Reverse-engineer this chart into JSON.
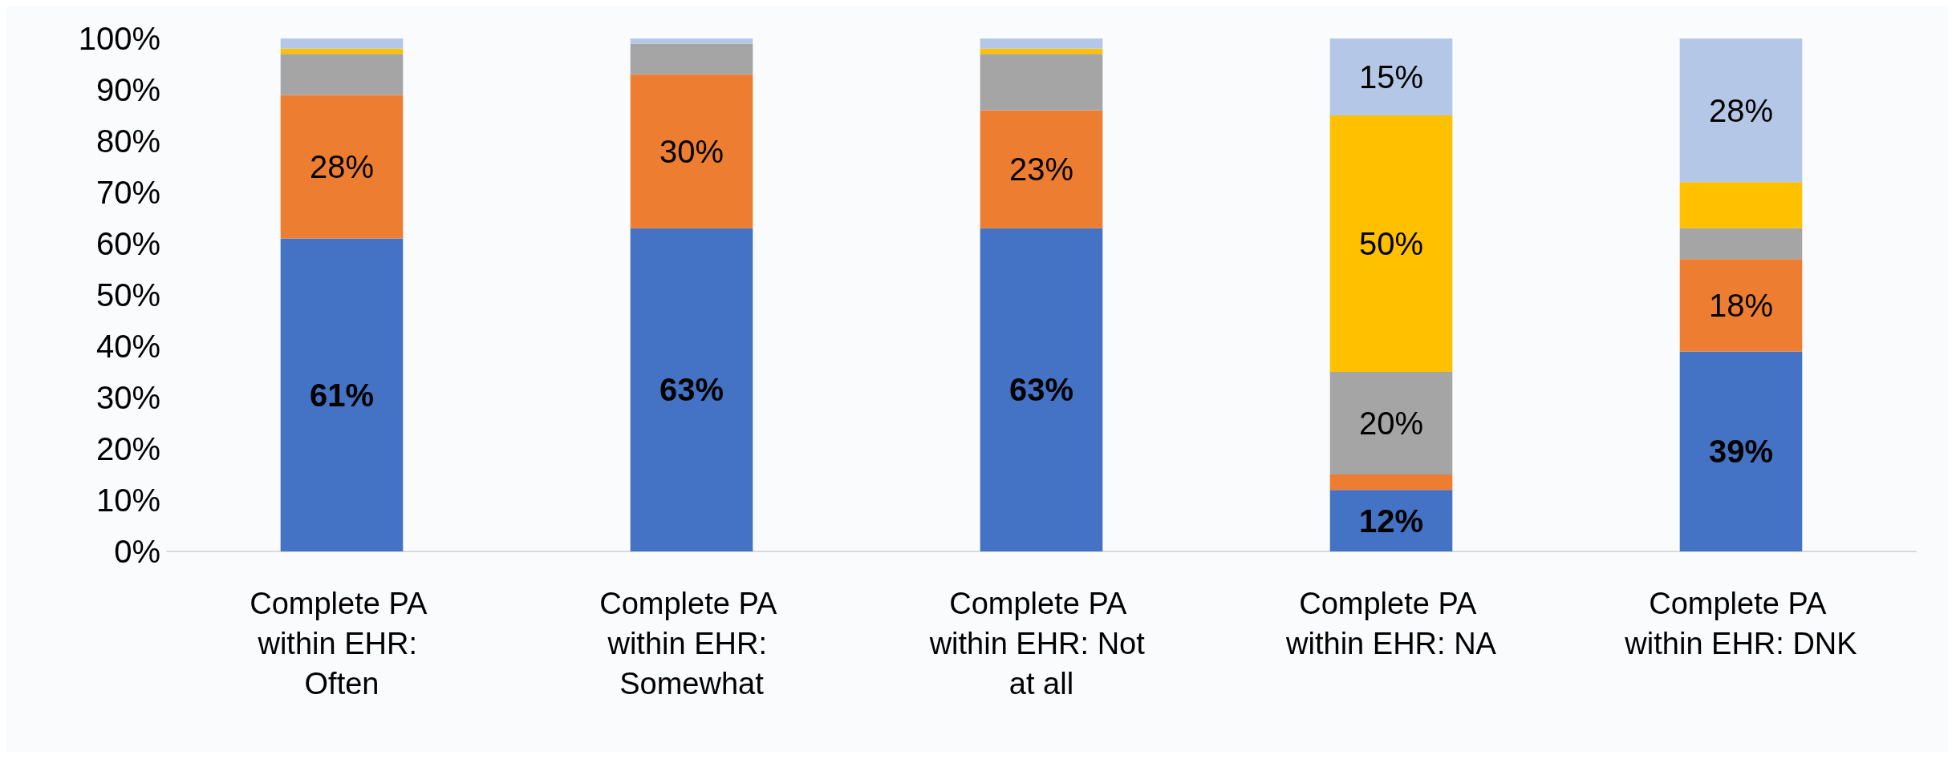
{
  "chart_data": {
    "type": "bar",
    "stacked": true,
    "categories": [
      "Complete PA within EHR: Often",
      "Complete PA within EHR: Somewhat",
      "Complete PA within EHR: Not at all",
      "Complete PA within EHR: NA",
      "Complete PA within EHR: DNK"
    ],
    "series": [
      {
        "color": "#4472c4",
        "values": [
          61,
          63,
          63,
          12,
          39
        ],
        "value_labels": [
          "61%",
          "63%",
          "63%",
          "12%",
          "39%"
        ]
      },
      {
        "color": "#ed7d31",
        "values": [
          28,
          30,
          23,
          3,
          18
        ],
        "value_labels": [
          "28%",
          "30%",
          "23%",
          null,
          "18%"
        ]
      },
      {
        "color": "#a5a5a5",
        "values": [
          8,
          6,
          11,
          20,
          6
        ],
        "value_labels": [
          null,
          null,
          null,
          "20%",
          null
        ]
      },
      {
        "color": "#ffc000",
        "values": [
          1,
          0,
          1,
          50,
          9
        ],
        "value_labels": [
          null,
          null,
          null,
          "50%",
          null
        ]
      },
      {
        "color": "#b4c7e7",
        "values": [
          2,
          1,
          2,
          15,
          28
        ],
        "value_labels": [
          null,
          null,
          null,
          "15%",
          "28%"
        ]
      }
    ],
    "ylim": [
      0,
      100
    ],
    "yticks": [
      {
        "value": 0,
        "label": "0%"
      },
      {
        "value": 10,
        "label": "10%"
      },
      {
        "value": 20,
        "label": "20%"
      },
      {
        "value": 30,
        "label": "30%"
      },
      {
        "value": 40,
        "label": "40%"
      },
      {
        "value": 50,
        "label": "50%"
      },
      {
        "value": 60,
        "label": "60%"
      },
      {
        "value": 70,
        "label": "70%"
      },
      {
        "value": 80,
        "label": "80%"
      },
      {
        "value": 90,
        "label": "90%"
      },
      {
        "value": 100,
        "label": "100%"
      }
    ],
    "grid": false
  }
}
